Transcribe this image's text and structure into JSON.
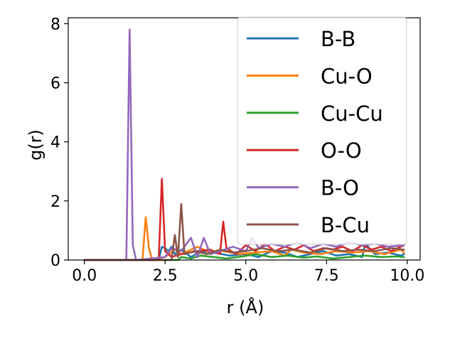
{
  "chart_data": {
    "type": "line",
    "xlabel": "r (Å)",
    "ylabel": "g(r)",
    "xlim": [
      -0.5,
      10.4
    ],
    "ylim": [
      0,
      8.2
    ],
    "xticks": [
      0.0,
      2.5,
      5.0,
      7.5,
      10.0
    ],
    "xtick_labels": [
      "0.0",
      "2.5",
      "5.0",
      "7.5",
      "10.0"
    ],
    "yticks": [
      0,
      2,
      4,
      6,
      8
    ],
    "ytick_labels": [
      "0",
      "2",
      "4",
      "6",
      "8"
    ],
    "grid": false,
    "legend_position": "top-right",
    "series": [
      {
        "name": "B-B",
        "color": "#1f77b4",
        "x": [
          0.0,
          2.3,
          2.4,
          2.5,
          2.6,
          2.7,
          2.8,
          3.0,
          3.3,
          3.6,
          4.0,
          4.5,
          5.0,
          5.4,
          5.8,
          6.2,
          6.6,
          7.0,
          7.4,
          7.8,
          8.2,
          8.6,
          8.7,
          9.0,
          9.4,
          9.8,
          9.9
        ],
        "y": [
          0.0,
          0.0,
          0.45,
          0.4,
          0.3,
          0.45,
          0.2,
          0.35,
          0.1,
          0.3,
          0.25,
          0.15,
          0.2,
          0.1,
          0.3,
          0.25,
          0.1,
          0.2,
          0.3,
          0.15,
          0.2,
          0.1,
          0.55,
          0.2,
          0.25,
          0.15,
          0.2
        ]
      },
      {
        "name": "Cu-O",
        "color": "#ff7f0e",
        "x": [
          0.0,
          1.8,
          1.9,
          2.0,
          2.1,
          2.5,
          2.8,
          3.0,
          3.2,
          3.5,
          3.9,
          4.3,
          4.8,
          5.3,
          5.8,
          6.2,
          6.4,
          6.8,
          7.3,
          7.8,
          8.3,
          8.8,
          9.3,
          9.8,
          9.9
        ],
        "y": [
          0.0,
          0.0,
          1.45,
          0.4,
          0.0,
          0.1,
          0.35,
          0.2,
          0.3,
          0.45,
          0.25,
          0.3,
          0.2,
          0.25,
          0.3,
          0.15,
          0.35,
          0.25,
          0.2,
          0.3,
          0.25,
          0.3,
          0.2,
          0.35,
          0.25
        ]
      },
      {
        "name": "Cu-Cu",
        "color": "#2ca02c",
        "x": [
          0.0,
          2.9,
          3.0,
          3.3,
          3.6,
          4.0,
          4.4,
          4.9,
          5.3,
          5.8,
          6.3,
          6.8,
          7.2,
          7.7,
          8.2,
          8.7,
          9.2,
          9.7,
          9.9
        ],
        "y": [
          0.0,
          0.0,
          0.1,
          0.05,
          0.15,
          0.1,
          0.05,
          0.12,
          0.2,
          0.1,
          0.15,
          0.08,
          0.12,
          0.05,
          0.1,
          0.15,
          0.1,
          0.12,
          0.1
        ]
      },
      {
        "name": "O-O",
        "color": "#d62728",
        "x": [
          0.0,
          2.3,
          2.4,
          2.5,
          2.7,
          3.0,
          3.5,
          3.9,
          4.2,
          4.3,
          4.4,
          4.7,
          5.0,
          5.3,
          5.6,
          5.9,
          6.2,
          6.5,
          6.8,
          7.1,
          7.4,
          7.7,
          8.0,
          8.3,
          8.6,
          8.9,
          9.2,
          9.5,
          9.9
        ],
        "y": [
          0.0,
          0.0,
          2.75,
          0.3,
          0.1,
          0.2,
          0.3,
          0.35,
          0.2,
          1.3,
          0.4,
          0.2,
          0.5,
          0.3,
          0.55,
          0.3,
          0.45,
          0.35,
          0.5,
          0.3,
          0.4,
          0.35,
          0.45,
          0.3,
          0.5,
          0.35,
          0.45,
          0.3,
          0.5
        ]
      },
      {
        "name": "B-O",
        "color": "#9467bd",
        "x": [
          0.0,
          1.3,
          1.4,
          1.5,
          1.6,
          2.5,
          2.7,
          3.0,
          3.3,
          3.5,
          3.7,
          3.9,
          4.2,
          4.6,
          5.0,
          5.2,
          5.4,
          5.8,
          6.2,
          6.6,
          7.0,
          7.4,
          7.8,
          8.2,
          8.6,
          9.0,
          9.4,
          9.9
        ],
        "y": [
          0.0,
          0.0,
          7.8,
          0.5,
          0.0,
          0.1,
          0.4,
          0.3,
          0.75,
          0.1,
          0.75,
          0.2,
          0.3,
          0.45,
          0.3,
          0.75,
          0.4,
          0.55,
          0.45,
          0.6,
          0.4,
          0.55,
          0.45,
          0.6,
          0.5,
          0.55,
          0.45,
          0.5
        ]
      },
      {
        "name": "B-Cu",
        "color": "#8c564b",
        "x": [
          0.0,
          2.7,
          2.8,
          2.9,
          3.0,
          3.1,
          3.4,
          3.8,
          4.2,
          4.6,
          5.0,
          5.5,
          6.0,
          6.5,
          7.0,
          7.5,
          8.0,
          8.5,
          9.0,
          9.5,
          9.9
        ],
        "y": [
          0.0,
          0.0,
          0.85,
          0.1,
          1.9,
          0.2,
          0.3,
          0.2,
          0.35,
          0.25,
          0.3,
          0.4,
          0.3,
          0.35,
          0.25,
          0.4,
          0.3,
          0.35,
          0.3,
          0.4,
          0.35
        ]
      }
    ]
  }
}
